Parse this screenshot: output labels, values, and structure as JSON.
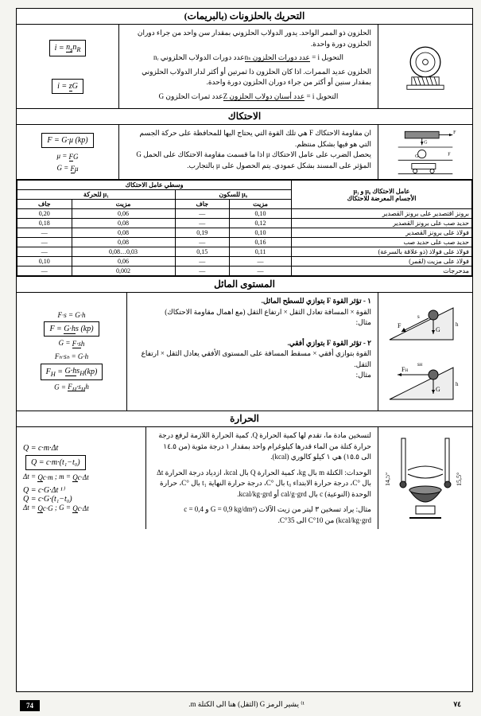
{
  "sec1": {
    "title": "التحريك بالحلزونات (بالبريمات)",
    "text1": "الحلزون ذو الممر الواحد. يدور الدولاب الحلزوني بمقدار سن واحد من جراء دوران الحلزون دورة واحدة.",
    "eq1_lhs": "التحويل i =",
    "eq1_num": "عدد دورات الحلزون nₛ",
    "eq1_den": "عدد دورات الدولاب الحلزوني nᵣ",
    "text2": "الحلزون عديد الممرات. اذا كان الحلزون ذا ثمرتين أو أكثر لدار الدولاب الحلزوني بمقدار سنين أو أكثر من جراء دوران الحلزون دورة واحدة.",
    "eq2_lhs": "التحويل i =",
    "eq2_num": "عدد أسنان دولاب الحلزون Z",
    "eq2_den": "عدد ثمرات الحلزون G",
    "f1": "i = nₛ / nᵣ",
    "f2": "i = z / G"
  },
  "sec2": {
    "title": "الاحتكاك",
    "text1": "ان مقاومة الاحتكاك F هي تلك القوة التي يحتاج اليها للمحافظة على حركة الجسم التي هو فيها بشكل منتظم.",
    "text2": "يحصل الضرب على عامل الاحتكاك μ اذا ما قسمت مقاومة الاحتكاك على الحمل G المؤثر على المسند بشكل عمودي. يتم الحصول على μ بالتجارب.",
    "f1": "F = G·μ (kp)",
    "f2": "μ = F/G",
    "f3": "G = F/μ"
  },
  "coef": {
    "title": "وسطي عامل الاحتكاك",
    "side_title": "عامل الاحتكاك μ₀ و μ₁",
    "side_sub": "الأجسام المعرضة للاحتكاك",
    "h_motion": "للحركة μ₁",
    "h_rest": "للسكون μ₀",
    "h_dry": "جاف",
    "h_oil": "مزيت",
    "materials": [
      "برونز اقتصدير على برونز القصدير",
      "حديد صب على برونز القصدير",
      "فولاذ على برونز القصدير",
      "حديد صب على حديد صب",
      "فولاذ على فولاذ (ذو علاقة بالسرعة)",
      "فولاذ على مزيت (لقمر)",
      "مدحرجات"
    ],
    "rows": [
      [
        "0,20",
        "0,06",
        "—",
        "0,10"
      ],
      [
        "0,18",
        "0,08",
        "—",
        "0,12"
      ],
      [
        "—",
        "0,08",
        "0,19",
        "0,10"
      ],
      [
        "—",
        "0,08",
        "—",
        "0,16"
      ],
      [
        "—",
        "0,08…0,03",
        "0,15",
        "0,11"
      ],
      [
        "0,10",
        "0,06",
        "—",
        "—"
      ],
      [
        "—",
        "0,002",
        "—",
        "—"
      ]
    ]
  },
  "sec3": {
    "title": "المستوى المائل",
    "p1_head": "١ - تؤثر القوة F بتوازي للسطح المائل.",
    "p1_body": "القوة × المسافة تعادل الثقل × ارتفاع الثقل (مع اهمال مقاومة الاحتكاك)",
    "ex": "مثال:",
    "p2_head": "٢ - تؤثر القوة F بتوازي أفقي.",
    "p2_body": "القوة بتوازي أفقي × مسقط المسافة على المستوى الأفقي يعادل الثقل × ارتفاع الثقل.",
    "f1": "F·s = G·h",
    "f2": "F = G·h/s (kp)",
    "f3": "G = F·s/h",
    "f4": "Fₕ·sₕ = G·h",
    "f5": "Fₕ = G·h/sₕ (kp)",
    "f6": "G = Fₕ·sₕ/h"
  },
  "sec4": {
    "title": "الحرارة",
    "p1": "لتسخين مادة ما، تقدم لها كمية الحرارة Q. كمية الحرارة اللازمة لرفع درجة حرارة كتلة من الماء قدرها كيلوغرام واحد بمقدار ١ درجة مئوية (من ١٤.٥ الى ١٥.٥) هي ١ كيلو كالوري (kcal).",
    "p2": "الوحدات: الكتلة m بال kg، كمية الحرارة Q بال kcal، ازدياد درجة الحرارة Δt بال °C، درجة حرارة الابتداء t₀ بال °C، درجة حرارة النهاية t₁ بال °C، حرارة الوحدة (النوعية) c بال cal/g·grd أو kcal/kg·grd.",
    "p3": "مثال: يراد تسخين ٣ ليتر من زيت الآلات (G = 0,9 kg/dm³ و c = 0,4 kcal/kg·grd) من 10°C الى 35°C.",
    "f1": "Q = c·m·Δt",
    "f2": "Q = c·m·(t₁−t₀)",
    "f3": "Δt = Q/(c·m) ; m = Q/(c·Δt)",
    "f4": "Q = c·G·Δt ¹⁾",
    "f5": "Q = c·G·(t₁−t₀)",
    "f6": "Δt = Q/(c·G) ; G = Q/(c·Δt)",
    "temps": {
      "l": "14,5°",
      "r": "15,5°"
    }
  },
  "footnote": "¹⁾ يشير الرمز G (الثقل) هنا الى الكتلة m.",
  "page_l": "74",
  "page_r": "٧٤",
  "colors": {
    "line": "#000",
    "bg": "#fff"
  }
}
